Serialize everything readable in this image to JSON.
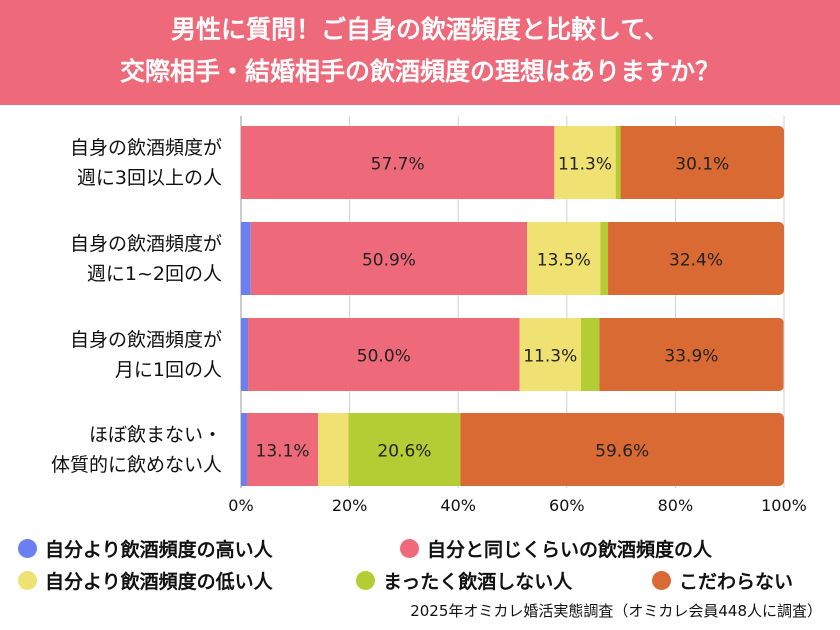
{
  "header": {
    "line1": "男性に質問！ご自身の飲酒頻度と比較して、",
    "line2": "交際相手・結婚相手の飲酒頻度の理想はありますか？"
  },
  "chart_data": {
    "type": "bar",
    "orientation": "horizontal",
    "stacked": true,
    "title": "男性に質問！ご自身の飲酒頻度と比較して、交際相手・結婚相手の飲酒頻度の理想はありますか？",
    "categories": [
      [
        "自身の飲酒頻度が",
        "週に3回以上の人"
      ],
      [
        "自身の飲酒頻度が",
        "週に1~2回の人"
      ],
      [
        "自身の飲酒頻度が",
        "月に1回の人"
      ],
      [
        "ほぼ飲まない・",
        "体質的に飲めない人"
      ]
    ],
    "series": [
      {
        "name": "自分より飲酒頻度の高い人",
        "color": "#6b7ff0",
        "values": [
          0.0,
          1.8,
          1.3,
          1.1
        ],
        "labels": [
          "",
          "",
          "",
          ""
        ]
      },
      {
        "name": "自分と同じくらいの飲酒頻度の人",
        "color": "#ee6a7a",
        "values": [
          57.7,
          50.9,
          50.0,
          13.1
        ],
        "labels": [
          "57.7%",
          "50.9%",
          "50.0%",
          "13.1%"
        ]
      },
      {
        "name": "自分より飲酒頻度の低い人",
        "color": "#f0e272",
        "values": [
          11.3,
          13.5,
          11.3,
          5.6
        ],
        "labels": [
          "11.3%",
          "13.5%",
          "11.3%",
          ""
        ]
      },
      {
        "name": "まったく飲酒しない人",
        "color": "#b4cd34",
        "values": [
          0.9,
          1.4,
          3.4,
          20.6
        ],
        "labels": [
          "",
          "",
          "",
          "20.6%"
        ]
      },
      {
        "name": "こだわらない",
        "color": "#d96a34",
        "values": [
          30.1,
          32.4,
          33.9,
          59.6
        ],
        "labels": [
          "30.1%",
          "32.4%",
          "33.9%",
          "59.6%"
        ]
      }
    ],
    "xlim": [
      0,
      100
    ],
    "xticks": [
      "0%",
      "20%",
      "40%",
      "60%",
      "80%",
      "100%"
    ],
    "grid": true,
    "legend_position": "bottom"
  },
  "legend": [
    {
      "label": "自分より飲酒頻度の高い人",
      "color": "#6b7ff0"
    },
    {
      "label": "自分と同じくらいの飲酒頻度の人",
      "color": "#ee6a7a"
    },
    {
      "label": "自分より飲酒頻度の低い人",
      "color": "#f0e272"
    },
    {
      "label": "まったく飲酒しない人",
      "color": "#b4cd34"
    },
    {
      "label": "こだわらない",
      "color": "#d96a34"
    }
  ],
  "source": "2025年オミカレ婚活実態調査（オミカレ会員448人に調査）"
}
